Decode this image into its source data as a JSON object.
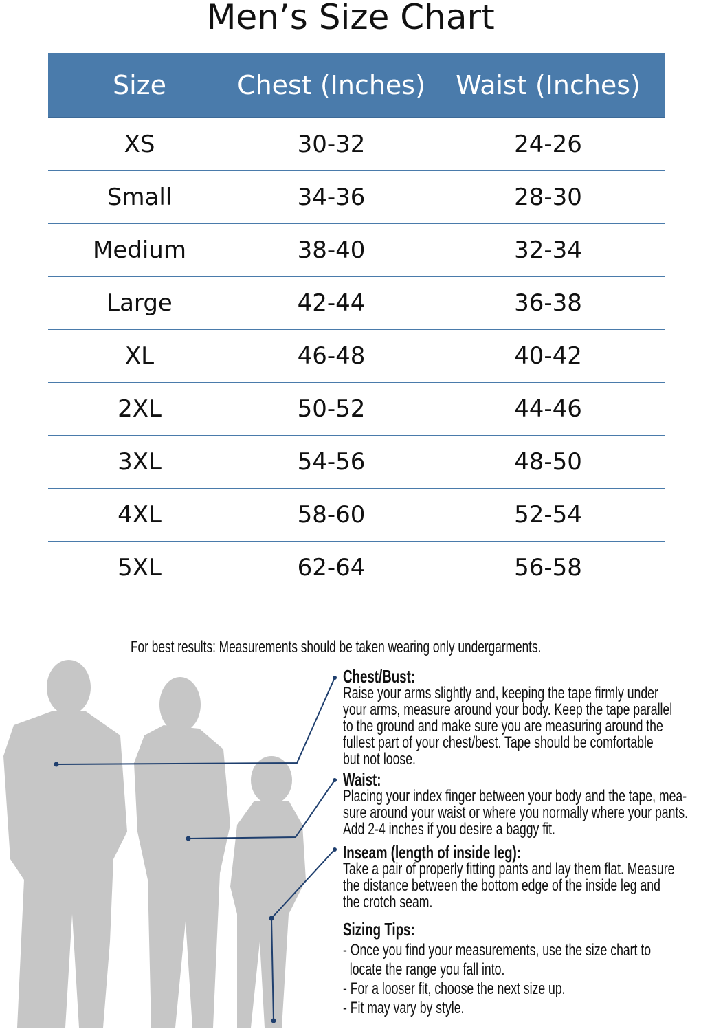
{
  "title": "Men’s Size Chart",
  "table": {
    "headers": [
      "Size",
      "Chest (Inches)",
      "Waist (Inches)"
    ],
    "rows": [
      [
        "XS",
        "30-32",
        "24-26"
      ],
      [
        "Small",
        "34-36",
        "28-30"
      ],
      [
        "Medium",
        "38-40",
        "32-34"
      ],
      [
        "Large",
        "42-44",
        "36-38"
      ],
      [
        "XL",
        "46-48",
        "40-42"
      ],
      [
        "2XL",
        "50-52",
        "44-46"
      ],
      [
        "3XL",
        "54-56",
        "48-50"
      ],
      [
        "4XL",
        "58-60",
        "52-54"
      ],
      [
        "5XL",
        "62-64",
        "56-58"
      ]
    ]
  },
  "note": "For best results: Measurements should be taken wearing only undergarments.",
  "sections": [
    {
      "heading": "Chest/Bust:",
      "lines": [
        "Raise your arms slightly and, keeping the tape firmly under",
        "your arms, measure around your body. Keep the tape parallel",
        "to the ground and make sure you are measuring around the",
        "fullest part of your chest/best. Tape should be comfortable",
        "but not loose."
      ]
    },
    {
      "heading": "Waist:",
      "lines": [
        "Placing your index finger between your body and the tape, mea-",
        "sure around your waist or where you normally where your pants.",
        "Add 2-4 inches if you desire a baggy fit."
      ]
    },
    {
      "heading": "Inseam (length of inside leg):",
      "lines": [
        "Take a pair of properly fitting pants and lay them flat. Measure",
        "the distance between the bottom edge of the inside leg and",
        "the crotch seam."
      ]
    }
  ],
  "tips": {
    "heading": "Sizing Tips:",
    "lines": [
      "- Once you find your measurements, use the size chart to",
      "  locate the range you fall into.",
      "- For a looser fit, choose the next size up.",
      "- Fit may vary by style."
    ]
  },
  "colors": {
    "header": "#4a7bab",
    "silhouette": "#c6c6c6",
    "pointer": "#1f3f6e"
  }
}
